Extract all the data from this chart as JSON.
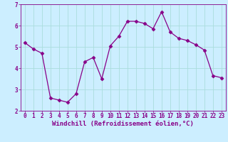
{
  "x": [
    0,
    1,
    2,
    3,
    4,
    5,
    6,
    7,
    8,
    9,
    10,
    11,
    12,
    13,
    14,
    15,
    16,
    17,
    18,
    19,
    20,
    21,
    22,
    23
  ],
  "y": [
    5.2,
    4.9,
    4.7,
    2.6,
    2.5,
    2.4,
    2.8,
    4.3,
    4.5,
    3.5,
    5.05,
    5.5,
    6.2,
    6.2,
    6.1,
    5.85,
    6.65,
    5.7,
    5.4,
    5.3,
    5.1,
    4.85,
    3.65,
    3.55
  ],
  "line_color": "#880088",
  "marker": "D",
  "marker_size": 2.5,
  "bg_color": "#cceeff",
  "grid_color": "#aadddd",
  "xlabel": "Windchill (Refroidissement éolien,°C)",
  "ylabel": "",
  "ylim": [
    2,
    7
  ],
  "xlim_min": -0.5,
  "xlim_max": 23.5,
  "yticks": [
    2,
    3,
    4,
    5,
    6,
    7
  ],
  "xticks": [
    0,
    1,
    2,
    3,
    4,
    5,
    6,
    7,
    8,
    9,
    10,
    11,
    12,
    13,
    14,
    15,
    16,
    17,
    18,
    19,
    20,
    21,
    22,
    23
  ],
  "axis_color": "#880088",
  "tick_color": "#880088",
  "label_color": "#880088",
  "tick_fontsize": 5.5,
  "xlabel_fontsize": 6.5
}
